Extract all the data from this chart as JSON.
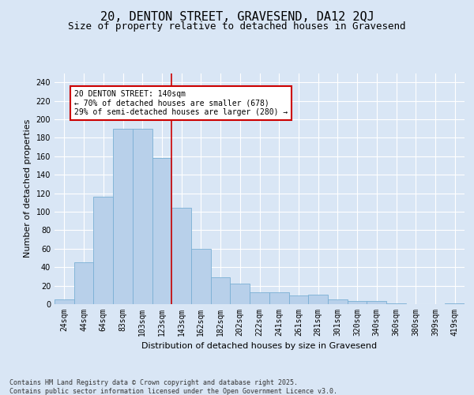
{
  "title1": "20, DENTON STREET, GRAVESEND, DA12 2QJ",
  "title2": "Size of property relative to detached houses in Gravesend",
  "xlabel": "Distribution of detached houses by size in Gravesend",
  "ylabel": "Number of detached properties",
  "categories": [
    "24sqm",
    "44sqm",
    "64sqm",
    "83sqm",
    "103sqm",
    "123sqm",
    "143sqm",
    "162sqm",
    "182sqm",
    "202sqm",
    "222sqm",
    "241sqm",
    "261sqm",
    "281sqm",
    "301sqm",
    "320sqm",
    "340sqm",
    "360sqm",
    "380sqm",
    "399sqm",
    "419sqm"
  ],
  "values": [
    5,
    45,
    116,
    190,
    190,
    158,
    104,
    60,
    29,
    22,
    13,
    13,
    9,
    10,
    5,
    3,
    3,
    1,
    0,
    0,
    1
  ],
  "bar_color": "#b8d0ea",
  "bar_edge_color": "#7aafd4",
  "vline_x": 5.5,
  "vline_color": "#cc0000",
  "annotation_text": "20 DENTON STREET: 140sqm\n← 70% of detached houses are smaller (678)\n29% of semi-detached houses are larger (280) →",
  "annotation_box_color": "#ffffff",
  "annotation_box_edge_color": "#cc0000",
  "ylim": [
    0,
    250
  ],
  "yticks": [
    0,
    20,
    40,
    60,
    80,
    100,
    120,
    140,
    160,
    180,
    200,
    220,
    240
  ],
  "background_color": "#d9e6f5",
  "plot_bg_color": "#d9e6f5",
  "grid_color": "#ffffff",
  "footer1": "Contains HM Land Registry data © Crown copyright and database right 2025.",
  "footer2": "Contains public sector information licensed under the Open Government Licence v3.0.",
  "title_fontsize": 11,
  "subtitle_fontsize": 9,
  "axis_label_fontsize": 8,
  "tick_fontsize": 7,
  "annotation_fontsize": 7,
  "footer_fontsize": 6
}
